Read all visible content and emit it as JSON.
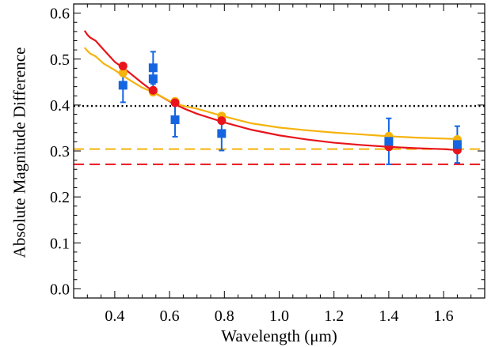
{
  "chart_data": {
    "type": "scatter",
    "title": "",
    "xlabel": "Wavelength (μm)",
    "ylabel": "Absolute Magnitude Difference",
    "xlim": [
      0.25,
      1.75
    ],
    "ylim": [
      -0.02,
      0.62
    ],
    "xticks": [
      0.4,
      0.6,
      0.8,
      1.0,
      1.2,
      1.4,
      1.6
    ],
    "xtick_labels": [
      "0.4",
      "0.6",
      "0.8",
      "1.0",
      "1.2",
      "1.4",
      "1.6"
    ],
    "yticks": [
      0.0,
      0.1,
      0.2,
      0.3,
      0.4,
      0.5,
      0.6
    ],
    "ytick_labels": [
      "0.0",
      "0.1",
      "0.2",
      "0.3",
      "0.4",
      "0.5",
      "0.6"
    ],
    "grid": false,
    "legend": false,
    "colors": {
      "red": "#e8141c",
      "orange": "#f5b30c",
      "blue": "#1565e0",
      "black": "#000000"
    },
    "series": [
      {
        "kind": "line",
        "color": "red",
        "x": [
          0.29,
          0.3,
          0.31,
          0.33,
          0.36,
          0.4,
          0.45,
          0.5,
          0.55,
          0.6,
          0.65,
          0.7,
          0.8,
          0.9,
          1.0,
          1.1,
          1.2,
          1.3,
          1.4,
          1.5,
          1.6,
          1.65
        ],
        "y": [
          0.562,
          0.553,
          0.547,
          0.54,
          0.52,
          0.494,
          0.472,
          0.448,
          0.425,
          0.408,
          0.393,
          0.381,
          0.362,
          0.346,
          0.334,
          0.325,
          0.318,
          0.313,
          0.309,
          0.306,
          0.304,
          0.302
        ]
      },
      {
        "kind": "line",
        "color": "orange",
        "x": [
          0.29,
          0.3,
          0.31,
          0.33,
          0.36,
          0.4,
          0.45,
          0.5,
          0.55,
          0.6,
          0.65,
          0.7,
          0.8,
          0.9,
          1.0,
          1.1,
          1.2,
          1.3,
          1.4,
          1.5,
          1.6,
          1.65
        ],
        "y": [
          0.525,
          0.518,
          0.512,
          0.506,
          0.49,
          0.476,
          0.456,
          0.438,
          0.425,
          0.409,
          0.398,
          0.392,
          0.375,
          0.36,
          0.351,
          0.345,
          0.34,
          0.336,
          0.332,
          0.329,
          0.327,
          0.326
        ]
      },
      {
        "kind": "points",
        "marker": "circle",
        "color": "red",
        "x": [
          0.43,
          0.54,
          0.62,
          0.79,
          1.4,
          1.65
        ],
        "y": [
          0.485,
          0.432,
          0.405,
          0.366,
          0.309,
          0.302
        ]
      },
      {
        "kind": "points",
        "marker": "circle",
        "color": "orange",
        "x": [
          0.43,
          0.54,
          0.62,
          0.79,
          1.4,
          1.65
        ],
        "y": [
          0.47,
          0.428,
          0.408,
          0.376,
          0.332,
          0.325
        ]
      },
      {
        "kind": "points",
        "marker": "square",
        "color": "blue",
        "x": [
          0.43,
          0.54,
          0.54,
          0.62,
          0.79,
          1.4,
          1.65
        ],
        "y": [
          0.443,
          0.481,
          0.457,
          0.368,
          0.338,
          0.321,
          0.314
        ],
        "yerr": [
          0.037,
          0.035,
          0.03,
          0.037,
          0.037,
          0.05,
          0.04
        ]
      }
    ],
    "hlines": [
      {
        "y": 0.398,
        "color": "black",
        "style": "dotted"
      },
      {
        "y": 0.304,
        "color": "orange",
        "style": "dashed"
      },
      {
        "y": 0.271,
        "color": "red",
        "style": "dashed"
      }
    ]
  }
}
